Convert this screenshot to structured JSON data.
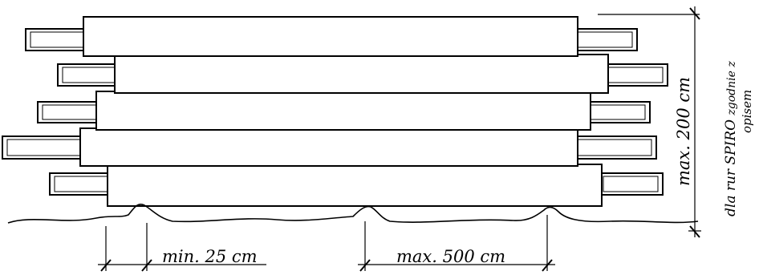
{
  "labels": {
    "min_spacing": "min. 25 cm",
    "max_spacing": "max. 500 cm",
    "max_height": "max. 200 cm",
    "note_line1_a": "dla rur SPIRO ",
    "note_line1_b": "zgodnie z",
    "note_line2": "opisem"
  },
  "stack": {
    "pipe_count": 5
  }
}
